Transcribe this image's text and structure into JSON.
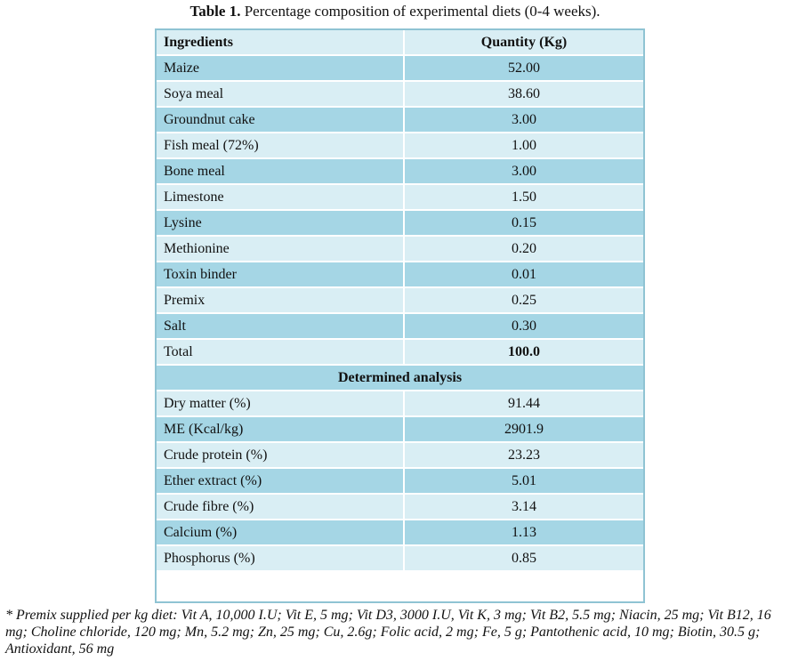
{
  "caption": {
    "label": "Table 1.",
    "text": "Percentage composition of experimental diets (0-4 weeks)."
  },
  "table": {
    "headers": [
      "Ingredients",
      "Quantity (Kg)"
    ],
    "ingredients": [
      {
        "name": "Maize",
        "qty": "52.00"
      },
      {
        "name": "Soya meal",
        "qty": "38.60"
      },
      {
        "name": "Groundnut cake",
        "qty": "3.00"
      },
      {
        "name": "Fish meal (72%)",
        "qty": "1.00"
      },
      {
        "name": "Bone meal",
        "qty": "3.00"
      },
      {
        "name": "Limestone",
        "qty": "1.50"
      },
      {
        "name": "Lysine",
        "qty": "0.15"
      },
      {
        "name": "Methionine",
        "qty": "0.20"
      },
      {
        "name": "Toxin binder",
        "qty": "0.01"
      },
      {
        "name": "Premix",
        "qty": "0.25"
      },
      {
        "name": "Salt",
        "qty": "0.30"
      },
      {
        "name": "Total",
        "qty": "100.0"
      }
    ],
    "section_title": "Determined analysis",
    "analysis": [
      {
        "name": "Dry matter (%)",
        "qty": "91.44"
      },
      {
        "name": "ME (Kcal/kg)",
        "qty": "2901.9"
      },
      {
        "name": "Crude protein (%)",
        "qty": "23.23"
      },
      {
        "name": "Ether extract (%)",
        "qty": "5.01"
      },
      {
        "name": "Crude fibre (%)",
        "qty": "3.14"
      },
      {
        "name": "Calcium (%)",
        "qty": "1.13"
      },
      {
        "name": "Phosphorus (%)",
        "qty": "0.85"
      }
    ]
  },
  "footnote": "* Premix supplied per kg diet: Vit A, 10,000 I.U; Vit E, 5 mg; Vit D3, 3000 I.U, Vit K, 3 mg; Vit B2, 5.5 mg; Niacin, 25 mg; Vit B12, 16 mg; Choline chloride, 120 mg; Mn, 5.2 mg; Zn, 25 mg; Cu, 2.6g; Folic acid, 2 mg; Fe, 5 g; Pantothenic acid, 10 mg; Biotin, 30.5 g; Antioxidant, 56 mg",
  "colors": {
    "row_dark": "#a5d6e5",
    "row_light": "#d9eef4",
    "border": "#8fc3d3"
  }
}
